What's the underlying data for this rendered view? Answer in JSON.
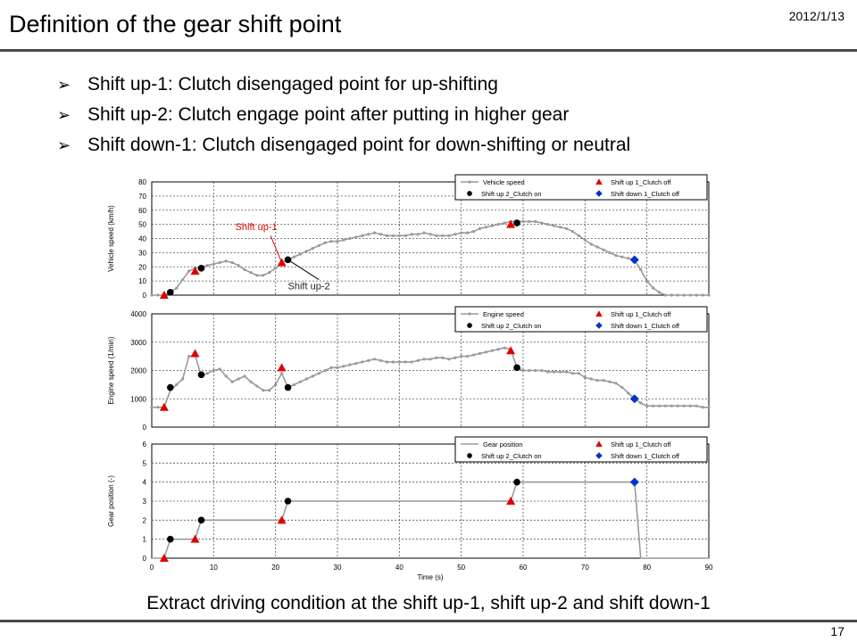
{
  "slide": {
    "title": "Definition of the gear shift point",
    "date": "2012/1/13",
    "page_number": "17",
    "bullets": [
      "Shift up-1: Clutch disengaged point for up-shifting",
      "Shift up-2: Clutch engage point after putting in higher gear",
      "Shift down-1: Clutch disengaged point for down-shifting or neutral"
    ],
    "conclusion": "Extract driving condition at the shift up-1, shift up-2 and shift down-1"
  },
  "colors": {
    "line": "#9a9a9a",
    "shift_up_1": "#e00000",
    "shift_up_2": "#000000",
    "shift_down_1": "#0033cc",
    "annotation": "#e00000"
  },
  "chart_data": [
    {
      "type": "line",
      "ylabel": "Vehicle speed (km/h)",
      "xlabel": "",
      "xlim": [
        0,
        90
      ],
      "ylim": [
        0,
        80
      ],
      "xticks": [
        0,
        10,
        20,
        30,
        40,
        50,
        60,
        70,
        80,
        90
      ],
      "yticks": [
        0,
        10,
        20,
        30,
        40,
        50,
        60,
        70,
        80
      ],
      "grid": true,
      "legend_position": "top-right",
      "series": [
        {
          "name": "Vehicle speed",
          "kind": "line",
          "x": [
            0,
            1,
            2,
            3,
            4,
            5,
            6,
            7,
            8,
            9,
            10,
            11,
            12,
            13,
            14,
            15,
            16,
            17,
            18,
            19,
            20,
            21,
            22,
            23,
            24,
            25,
            26,
            27,
            28,
            29,
            30,
            31,
            32,
            33,
            34,
            35,
            36,
            37,
            38,
            39,
            40,
            41,
            42,
            43,
            44,
            45,
            46,
            47,
            48,
            49,
            50,
            51,
            52,
            53,
            54,
            55,
            56,
            57,
            58,
            59,
            60,
            61,
            62,
            63,
            64,
            65,
            66,
            67,
            68,
            69,
            70,
            71,
            72,
            73,
            74,
            75,
            76,
            77,
            78,
            79,
            80,
            81,
            82,
            83,
            84,
            85,
            86,
            87,
            88,
            89,
            90
          ],
          "y": [
            0,
            0,
            0,
            2,
            5,
            11,
            17,
            19,
            20,
            21,
            22,
            23,
            24,
            23,
            21,
            18,
            16,
            14,
            14,
            16,
            19,
            23,
            25,
            27,
            29,
            31,
            33,
            35,
            37,
            38,
            38,
            39,
            40,
            41,
            42,
            43,
            44,
            43,
            42,
            42,
            42,
            42,
            43,
            43,
            44,
            43,
            42,
            42,
            42,
            43,
            44,
            44,
            45,
            47,
            48,
            49,
            50,
            51,
            52,
            52,
            52,
            52,
            52,
            51,
            50,
            49,
            48,
            47,
            45,
            42,
            39,
            36,
            34,
            32,
            30,
            28,
            27,
            26,
            25,
            18,
            10,
            5,
            2,
            0,
            0,
            0,
            0,
            0,
            0,
            0,
            0
          ]
        },
        {
          "name": "Shift up 1_Clutch off",
          "kind": "marker",
          "marker": "triangle",
          "x": [
            2,
            7,
            21,
            58
          ],
          "y": [
            0,
            17,
            23,
            50
          ]
        },
        {
          "name": "Shift up 2_Clutch on",
          "kind": "marker",
          "marker": "circle",
          "x": [
            3,
            8,
            22,
            59
          ],
          "y": [
            2,
            19,
            25,
            51
          ]
        },
        {
          "name": "Shift down 1_Clutch off",
          "kind": "marker",
          "marker": "diamond",
          "x": [
            78
          ],
          "y": [
            25
          ]
        }
      ],
      "annotations": [
        {
          "text": "Shift up-1",
          "x": 21,
          "y": 23
        },
        {
          "text": "Shift up-2",
          "x": 22,
          "y": 25
        }
      ]
    },
    {
      "type": "line",
      "ylabel": "Engine speed (1/min)",
      "xlabel": "",
      "xlim": [
        0,
        90
      ],
      "ylim": [
        0,
        4000
      ],
      "xticks": [
        0,
        10,
        20,
        30,
        40,
        50,
        60,
        70,
        80,
        90
      ],
      "yticks": [
        0,
        1000,
        2000,
        3000,
        4000
      ],
      "grid": true,
      "legend_position": "top-right",
      "series": [
        {
          "name": "Engine speed",
          "kind": "line",
          "x": [
            0,
            1,
            2,
            3,
            4,
            5,
            6,
            7,
            8,
            9,
            10,
            11,
            12,
            13,
            14,
            15,
            16,
            17,
            18,
            19,
            20,
            21,
            22,
            23,
            24,
            25,
            26,
            27,
            28,
            29,
            30,
            31,
            32,
            33,
            34,
            35,
            36,
            37,
            38,
            39,
            40,
            41,
            42,
            43,
            44,
            45,
            46,
            47,
            48,
            49,
            50,
            51,
            52,
            53,
            54,
            55,
            56,
            57,
            58,
            59,
            60,
            61,
            62,
            63,
            64,
            65,
            66,
            67,
            68,
            69,
            70,
            71,
            72,
            73,
            74,
            75,
            76,
            77,
            78,
            79,
            80,
            81,
            82,
            83,
            84,
            85,
            86,
            87,
            88,
            89,
            90
          ],
          "y": [
            700,
            700,
            700,
            1300,
            1500,
            1700,
            2500,
            2550,
            1800,
            1900,
            2000,
            2050,
            1800,
            1600,
            1700,
            1800,
            1600,
            1450,
            1300,
            1300,
            1500,
            1900,
            1400,
            1500,
            1600,
            1700,
            1800,
            1900,
            2000,
            2100,
            2100,
            2150,
            2200,
            2250,
            2300,
            2350,
            2400,
            2350,
            2300,
            2300,
            2300,
            2300,
            2300,
            2350,
            2400,
            2400,
            2450,
            2450,
            2400,
            2450,
            2500,
            2500,
            2550,
            2600,
            2650,
            2700,
            2750,
            2800,
            2750,
            2100,
            2000,
            2000,
            2000,
            2000,
            1950,
            1950,
            1950,
            1950,
            1900,
            1900,
            1750,
            1700,
            1650,
            1650,
            1600,
            1550,
            1400,
            1200,
            1000,
            850,
            750,
            750,
            750,
            750,
            750,
            750,
            750,
            750,
            750,
            700,
            700
          ]
        },
        {
          "name": "Shift up 1_Clutch off",
          "kind": "marker",
          "marker": "triangle",
          "x": [
            2,
            7,
            21,
            58
          ],
          "y": [
            700,
            2600,
            2100,
            2700
          ]
        },
        {
          "name": "Shift up 2_Clutch on",
          "kind": "marker",
          "marker": "circle",
          "x": [
            3,
            8,
            22,
            59
          ],
          "y": [
            1400,
            1850,
            1400,
            2100
          ]
        },
        {
          "name": "Shift down 1_Clutch off",
          "kind": "marker",
          "marker": "diamond",
          "x": [
            78
          ],
          "y": [
            1000
          ]
        }
      ],
      "annotations": []
    },
    {
      "type": "line",
      "ylabel": "Gear position (-)",
      "xlabel": "Time (s)",
      "xlim": [
        0,
        90
      ],
      "ylim": [
        0,
        6
      ],
      "xticks": [
        0,
        10,
        20,
        30,
        40,
        50,
        60,
        70,
        80,
        90
      ],
      "yticks": [
        0,
        1,
        2,
        3,
        4,
        5,
        6
      ],
      "grid": true,
      "legend_position": "top-right",
      "series": [
        {
          "name": "Gear position",
          "kind": "line",
          "x": [
            0,
            2,
            3,
            7,
            8,
            21,
            22,
            58,
            59,
            78,
            79,
            90
          ],
          "y": [
            0,
            0,
            1,
            1,
            2,
            2,
            3,
            3,
            4,
            4,
            0,
            0
          ]
        },
        {
          "name": "Shift up 1_Clutch off",
          "kind": "marker",
          "marker": "triangle",
          "x": [
            2,
            7,
            21,
            58
          ],
          "y": [
            0,
            1,
            2,
            3
          ]
        },
        {
          "name": "Shift up 2_Clutch on",
          "kind": "marker",
          "marker": "circle",
          "x": [
            3,
            8,
            22,
            59
          ],
          "y": [
            1,
            2,
            3,
            4
          ]
        },
        {
          "name": "Shift down 1_Clutch off",
          "kind": "marker",
          "marker": "diamond",
          "x": [
            78
          ],
          "y": [
            4
          ]
        }
      ],
      "annotations": []
    }
  ]
}
